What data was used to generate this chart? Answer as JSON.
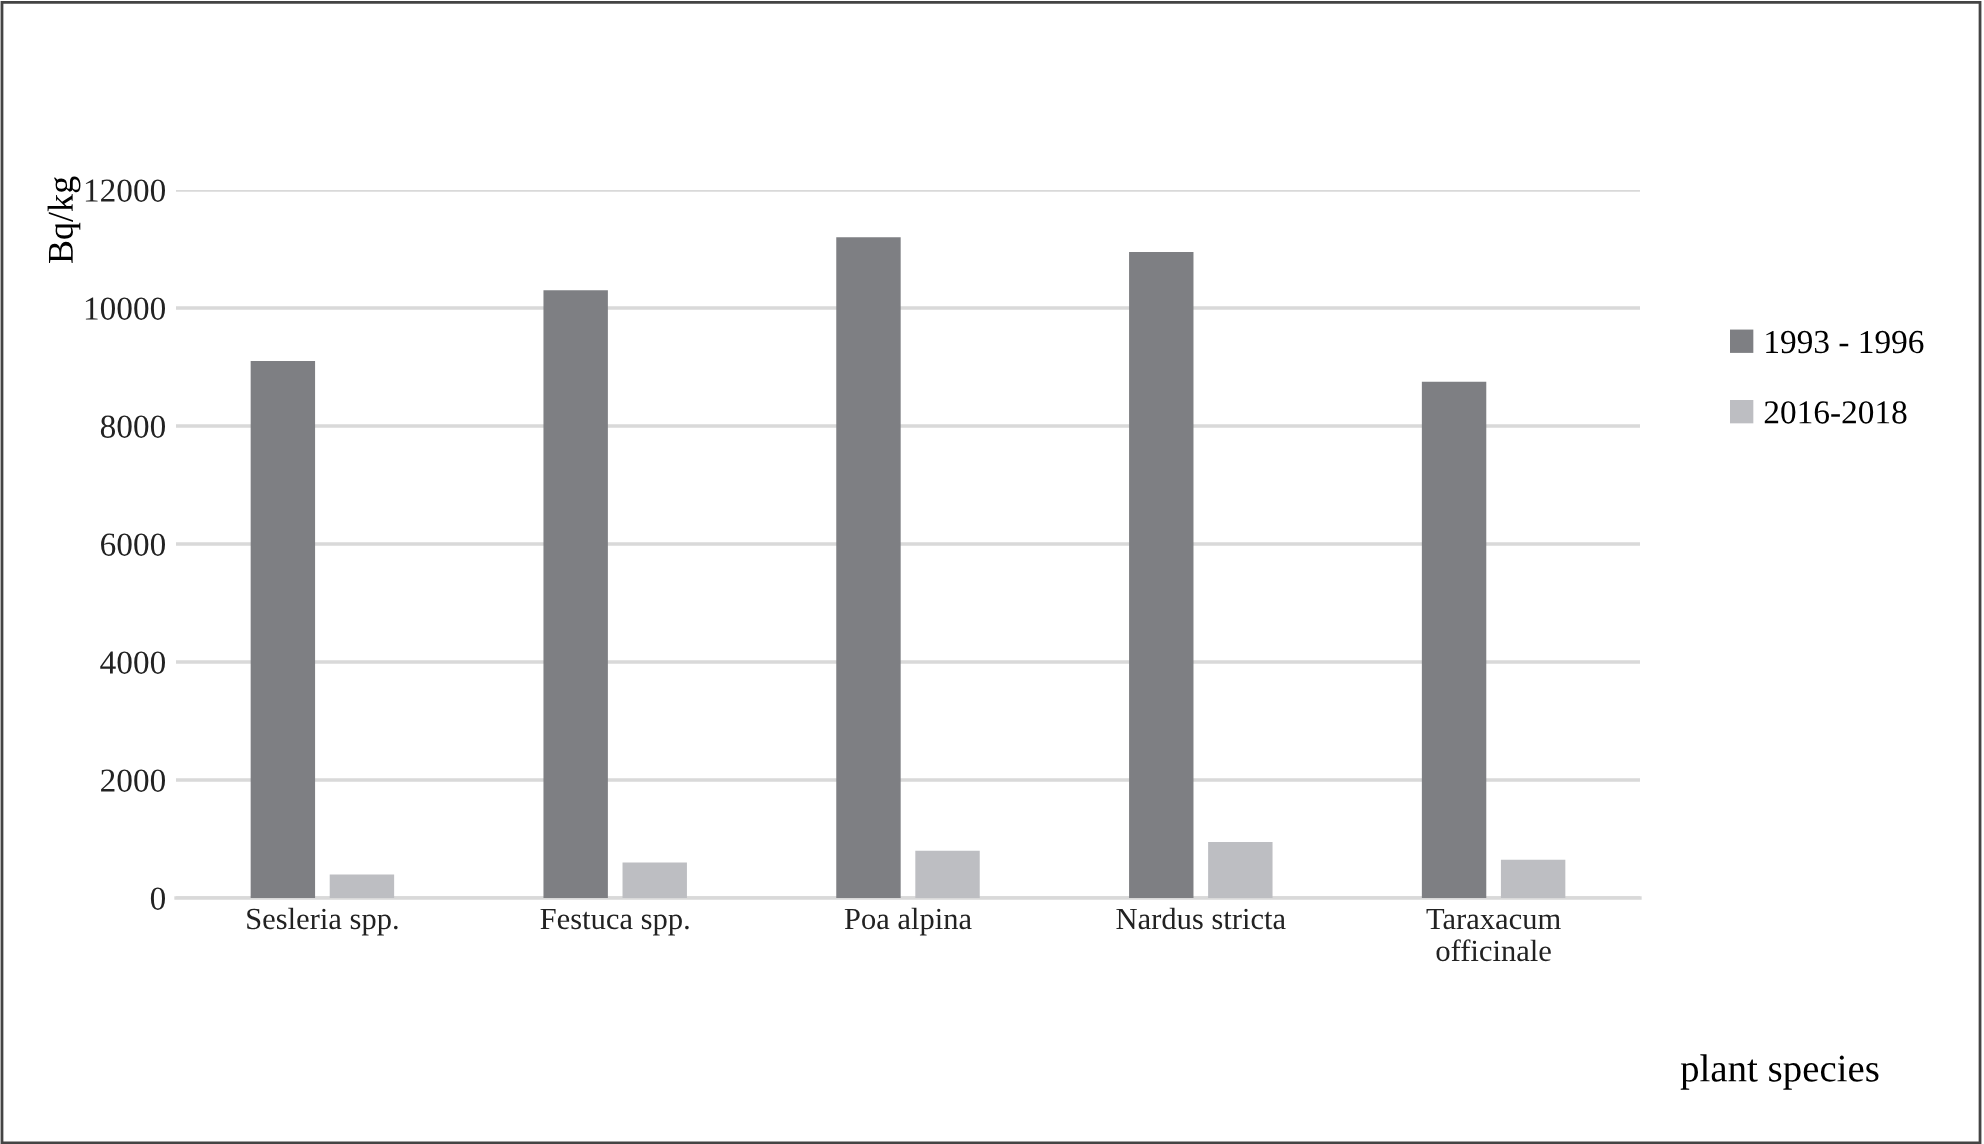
{
  "chart_data": {
    "type": "bar",
    "ylabel": "Bq/kg",
    "xlabel": "plant species",
    "categories": [
      "Sesleria spp.",
      "Festuca spp.",
      "Poa alpina",
      "Nardus stricta",
      "Taraxacum\nofficinale"
    ],
    "series": [
      {
        "name": "1993 - 1996",
        "color": "#7e7f83",
        "values": [
          9100,
          10300,
          11200,
          10950,
          8750
        ]
      },
      {
        "name": "2016-2018",
        "color": "#bdbec2",
        "values": [
          400,
          600,
          800,
          950,
          650
        ]
      }
    ],
    "ylim": [
      0,
      12000
    ],
    "yticks": [
      0,
      2000,
      4000,
      6000,
      8000,
      10000,
      12000
    ],
    "grid": "y",
    "legend": "right"
  }
}
